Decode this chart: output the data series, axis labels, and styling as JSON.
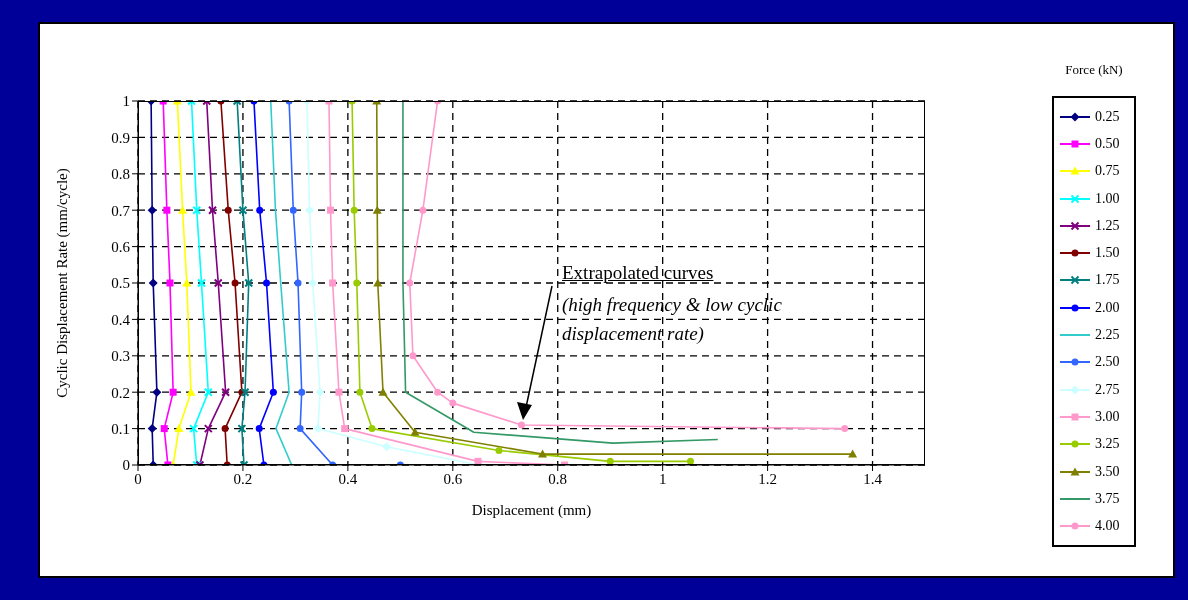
{
  "chart_data": {
    "type": "line",
    "xlabel": "Displacement (mm)",
    "ylabel": "Cyclic Displacement Rate (mm/cycle)",
    "legend_title": "Force (kN)",
    "xlim": [
      0,
      1.5
    ],
    "xticks": [
      0,
      0.2,
      0.4,
      0.6,
      0.8,
      1,
      1.2,
      1.4
    ],
    "ylim": [
      0,
      1
    ],
    "yticks": [
      0,
      0.1,
      0.2,
      0.3,
      0.4,
      0.5,
      0.6,
      0.7,
      0.8,
      0.9,
      1
    ],
    "grid": true,
    "legend": "right",
    "line_style": "solid",
    "annotations": [
      "Extrapolated curves",
      "(high frequency & low cyclic displacement rate)"
    ],
    "series": [
      {
        "name": "0.25",
        "color": "#000080",
        "marker": "diamond",
        "x": [
          0.025,
          0.027,
          0.029,
          0.036,
          0.027,
          0.029
        ],
        "values": [
          1,
          0.7,
          0.5,
          0.2,
          0.1,
          0
        ]
      },
      {
        "name": "0.50",
        "color": "#ff00ff",
        "marker": "square",
        "x": [
          0.048,
          0.055,
          0.061,
          0.067,
          0.05,
          0.057
        ],
        "values": [
          1,
          0.7,
          0.5,
          0.2,
          0.1,
          0
        ]
      },
      {
        "name": "0.75",
        "color": "#ffff00",
        "marker": "triangle",
        "x": [
          0.075,
          0.085,
          0.093,
          0.101,
          0.078,
          0.067
        ],
        "values": [
          1,
          0.7,
          0.5,
          0.2,
          0.1,
          0
        ]
      },
      {
        "name": "1.00",
        "color": "#00ffff",
        "marker": "cross",
        "x": [
          0.102,
          0.112,
          0.121,
          0.134,
          0.106,
          0.112
        ],
        "values": [
          1,
          0.7,
          0.5,
          0.2,
          0.1,
          0
        ]
      },
      {
        "name": "1.25",
        "color": "#800080",
        "marker": "cross",
        "x": [
          0.131,
          0.142,
          0.153,
          0.167,
          0.134,
          0.118
        ],
        "values": [
          1,
          0.7,
          0.5,
          0.2,
          0.1,
          0
        ]
      },
      {
        "name": "1.50",
        "color": "#800000",
        "marker": "circle",
        "x": [
          0.158,
          0.172,
          0.185,
          0.198,
          0.166,
          0.17
        ],
        "values": [
          1,
          0.7,
          0.5,
          0.2,
          0.1,
          0
        ]
      },
      {
        "name": "1.75",
        "color": "#008080",
        "marker": "cross",
        "x": [
          0.189,
          0.2,
          0.211,
          0.204,
          0.198,
          0.202
        ],
        "values": [
          1,
          0.7,
          0.5,
          0.2,
          0.1,
          0
        ]
      },
      {
        "name": "2.00",
        "color": "#0000ff",
        "marker": "circle",
        "x": [
          0.221,
          0.232,
          0.245,
          0.258,
          0.231,
          0.24
        ],
        "values": [
          1,
          0.7,
          0.5,
          0.2,
          0.1,
          0
        ]
      },
      {
        "name": "2.25",
        "color": "#33cccc",
        "marker": "none",
        "x": [
          0.253,
          0.262,
          0.272,
          0.288,
          0.263,
          0.293
        ],
        "values": [
          1,
          0.7,
          0.5,
          0.2,
          0.1,
          0
        ]
      },
      {
        "name": "2.50",
        "color": "#3366ff",
        "marker": "circle",
        "x": [
          0.288,
          0.296,
          0.305,
          0.312,
          0.309,
          0.371,
          0.5
        ],
        "values": [
          1,
          0.7,
          0.5,
          0.2,
          0.1,
          0,
          0
        ]
      },
      {
        "name": "2.75",
        "color": "#ccffff",
        "marker": "diamond",
        "x": [
          0.322,
          0.327,
          0.333,
          0.347,
          0.343,
          0.474,
          0.65
        ],
        "values": [
          1,
          0.7,
          0.5,
          0.2,
          0.1,
          0.05,
          0
        ]
      },
      {
        "name": "3.00",
        "color": "#ff99cc",
        "marker": "square",
        "x": [
          0.364,
          0.367,
          0.371,
          0.383,
          0.394,
          0.648,
          0.813
        ],
        "values": [
          1,
          0.7,
          0.5,
          0.2,
          0.1,
          0.01,
          0
        ]
      },
      {
        "name": "3.25",
        "color": "#99cc00",
        "marker": "circle",
        "x": [
          0.408,
          0.412,
          0.417,
          0.423,
          0.446,
          0.688,
          0.9,
          1.053
        ],
        "values": [
          1,
          0.7,
          0.5,
          0.2,
          0.1,
          0.04,
          0.01,
          0.01
        ]
      },
      {
        "name": "3.50",
        "color": "#808000",
        "marker": "triangle",
        "x": [
          0.455,
          0.456,
          0.457,
          0.467,
          0.528,
          0.771,
          1.362
        ],
        "values": [
          1,
          0.7,
          0.5,
          0.2,
          0.09,
          0.03,
          0.03
        ]
      },
      {
        "name": "3.75",
        "color": "#339966",
        "marker": "none",
        "x": [
          0.505,
          0.505,
          0.505,
          0.51,
          0.64,
          0.905,
          1.105
        ],
        "values": [
          1,
          0.7,
          0.5,
          0.2,
          0.09,
          0.06,
          0.07
        ]
      },
      {
        "name": "4.00",
        "color": "#ff99cc",
        "marker": "circle",
        "x": [
          0.571,
          0.543,
          0.518,
          0.524,
          0.571,
          0.6,
          0.731,
          1.347
        ],
        "values": [
          1,
          0.7,
          0.5,
          0.3,
          0.2,
          0.17,
          0.11,
          0.1
        ]
      }
    ]
  }
}
